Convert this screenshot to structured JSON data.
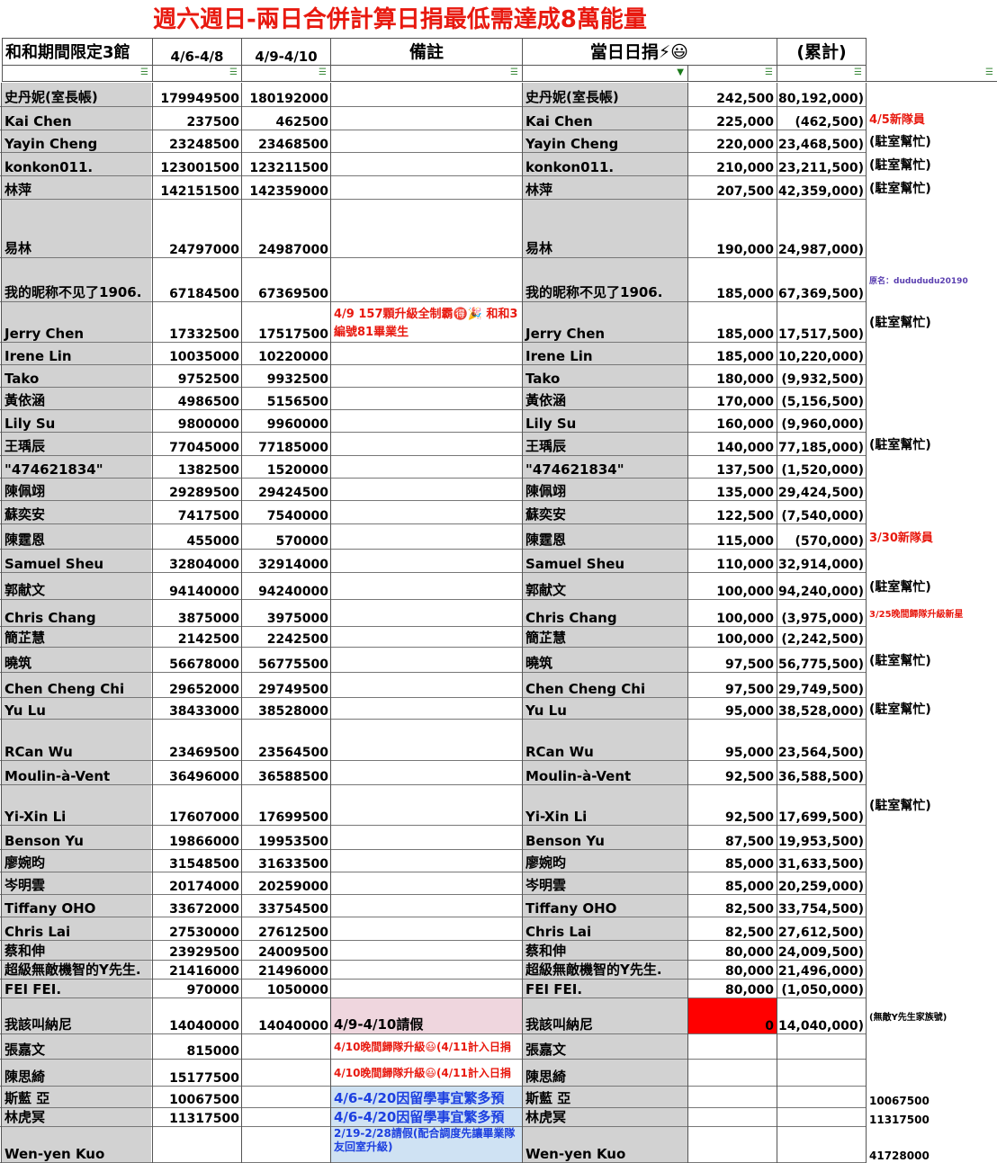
{
  "title": "週六週日-兩日合併計算日捐最低需達成8萬能量",
  "headers": {
    "col_a": "和和期間限定3館",
    "col_b": "4/6-4/8",
    "col_c": "4/9-4/10",
    "col_d": "備註",
    "col_e": "當日日捐⚡😃",
    "col_g": "(累計)"
  },
  "rows": [
    {
      "name": "史丹妮(室長帳)",
      "b": "179949500",
      "c": "180192000",
      "note": "",
      "name2": "史丹妮(室長帳)",
      "daily": "242,500",
      "cum": "(180,192,000)",
      "extra": ""
    },
    {
      "name": "Kai Chen",
      "b": "237500",
      "c": "462500",
      "note": "",
      "name2": "Kai Chen",
      "daily": "225,000",
      "cum": "(462,500)",
      "extra": "4/5新隊員"
    },
    {
      "name": "Yayin Cheng",
      "b": "23248500",
      "c": "23468500",
      "note": "",
      "name2": "Yayin Cheng",
      "daily": "220,000",
      "cum": "(23,468,500)",
      "extra": "(駐室幫忙)"
    },
    {
      "name": "konkon011.",
      "b": "123001500",
      "c": "123211500",
      "note": "",
      "name2": "konkon011.",
      "daily": "210,000",
      "cum": "(123,211,500)",
      "extra": "(駐室幫忙)"
    },
    {
      "name": "林萍",
      "b": "142151500",
      "c": "142359000",
      "note": "",
      "name2": "林萍",
      "daily": "207,500",
      "cum": "(142,359,000)",
      "extra": "(駐室幫忙)"
    },
    {
      "name": "易林",
      "b": "24797000",
      "c": "24987000",
      "note": "",
      "name2": "易林",
      "daily": "190,000",
      "cum": "(24,987,000)",
      "extra": ""
    },
    {
      "name": "我的昵称不见了1906.",
      "b": "67184500",
      "c": "67369500",
      "note": "",
      "name2": "我的昵称不见了1906.",
      "daily": "185,000",
      "cum": "(67,369,500)",
      "extra": "原名：dudududu20190"
    },
    {
      "name": "Jerry Chen",
      "b": "17332500",
      "c": "17517500",
      "note": "4/9 157顆升級全制霸🉐🎉 和和3編號81畢業生",
      "name2": "Jerry Chen",
      "daily": "185,000",
      "cum": "(17,517,500)",
      "extra": "(駐室幫忙)"
    },
    {
      "name": "Irene Lin",
      "b": "10035000",
      "c": "10220000",
      "note": "",
      "name2": "Irene Lin",
      "daily": "185,000",
      "cum": "(10,220,000)",
      "extra": ""
    },
    {
      "name": "Tako",
      "b": "9752500",
      "c": "9932500",
      "note": "",
      "name2": "Tako",
      "daily": "180,000",
      "cum": "(9,932,500)",
      "extra": ""
    },
    {
      "name": "黃依涵",
      "b": "4986500",
      "c": "5156500",
      "note": "",
      "name2": "黃依涵",
      "daily": "170,000",
      "cum": "(5,156,500)",
      "extra": ""
    },
    {
      "name": "Lily Su",
      "b": "9800000",
      "c": "9960000",
      "note": "",
      "name2": "Lily Su",
      "daily": "160,000",
      "cum": "(9,960,000)",
      "extra": ""
    },
    {
      "name": "王瑀辰",
      "b": "77045000",
      "c": "77185000",
      "note": "",
      "name2": "王瑀辰",
      "daily": "140,000",
      "cum": "(77,185,000)",
      "extra": "(駐室幫忙)"
    },
    {
      "name": "\"474621834\"",
      "b": "1382500",
      "c": "1520000",
      "note": "",
      "name2": "\"474621834\"",
      "daily": "137,500",
      "cum": "(1,520,000)",
      "extra": ""
    },
    {
      "name": "陳佩翊",
      "b": "29289500",
      "c": "29424500",
      "note": "",
      "name2": "陳佩翊",
      "daily": "135,000",
      "cum": "(29,424,500)",
      "extra": ""
    },
    {
      "name": "蘇奕安",
      "b": "7417500",
      "c": "7540000",
      "note": "",
      "name2": "蘇奕安",
      "daily": "122,500",
      "cum": "(7,540,000)",
      "extra": ""
    },
    {
      "name": "陳霆恩",
      "b": "455000",
      "c": "570000",
      "note": "",
      "name2": "陳霆恩",
      "daily": "115,000",
      "cum": "(570,000)",
      "extra": "3/30新隊員"
    },
    {
      "name": "Samuel Sheu",
      "b": "32804000",
      "c": "32914000",
      "note": "",
      "name2": "Samuel Sheu",
      "daily": "110,000",
      "cum": "(32,914,000)",
      "extra": ""
    },
    {
      "name": "郭献文",
      "b": "94140000",
      "c": "94240000",
      "note": "",
      "name2": "郭献文",
      "daily": "100,000",
      "cum": "(94,240,000)",
      "extra": "(駐室幫忙)"
    },
    {
      "name": "Chris Chang",
      "b": "3875000",
      "c": "3975000",
      "note": "",
      "name2": "Chris Chang",
      "daily": "100,000",
      "cum": "(3,975,000)",
      "extra": "3/25晚間歸隊升級新星"
    },
    {
      "name": "簡芷慧",
      "b": "2142500",
      "c": "2242500",
      "note": "",
      "name2": "簡芷慧",
      "daily": "100,000",
      "cum": "(2,242,500)",
      "extra": ""
    },
    {
      "name": "曉筑",
      "b": "56678000",
      "c": "56775500",
      "note": "",
      "name2": "曉筑",
      "daily": "97,500",
      "cum": "(56,775,500)",
      "extra": "(駐室幫忙)"
    },
    {
      "name": "Chen Cheng Chi",
      "b": "29652000",
      "c": "29749500",
      "note": "",
      "name2": "Chen Cheng Chi",
      "daily": "97,500",
      "cum": "(29,749,500)",
      "extra": ""
    },
    {
      "name": "Yu Lu",
      "b": "38433000",
      "c": "38528000",
      "note": "",
      "name2": "Yu Lu",
      "daily": "95,000",
      "cum": "(38,528,000)",
      "extra": "(駐室幫忙)"
    },
    {
      "name": "RCan Wu",
      "b": "23469500",
      "c": "23564500",
      "note": "",
      "name2": "RCan Wu",
      "daily": "95,000",
      "cum": "(23,564,500)",
      "extra": ""
    },
    {
      "name": "Moulin-à-Vent",
      "b": "36496000",
      "c": "36588500",
      "note": "",
      "name2": "Moulin-à-Vent",
      "daily": "92,500",
      "cum": "(36,588,500)",
      "extra": ""
    },
    {
      "name": "Yi-Xin Li",
      "b": "17607000",
      "c": "17699500",
      "note": "",
      "name2": "Yi-Xin Li",
      "daily": "92,500",
      "cum": "(17,699,500)",
      "extra": "(駐室幫忙)"
    },
    {
      "name": "Benson Yu",
      "b": "19866000",
      "c": "19953500",
      "note": "",
      "name2": "Benson Yu",
      "daily": "87,500",
      "cum": "(19,953,500)",
      "extra": ""
    },
    {
      "name": "廖婉昀",
      "b": "31548500",
      "c": "31633500",
      "note": "",
      "name2": "廖婉昀",
      "daily": "85,000",
      "cum": "(31,633,500)",
      "extra": ""
    },
    {
      "name": "岑明雲",
      "b": "20174000",
      "c": "20259000",
      "note": "",
      "name2": "岑明雲",
      "daily": "85,000",
      "cum": "(20,259,000)",
      "extra": ""
    },
    {
      "name": "Tiffany OHO",
      "b": "33672000",
      "c": "33754500",
      "note": "",
      "name2": "Tiffany OHO",
      "daily": "82,500",
      "cum": "(33,754,500)",
      "extra": ""
    },
    {
      "name": "Chris Lai",
      "b": "27530000",
      "c": "27612500",
      "note": "",
      "name2": "Chris Lai",
      "daily": "82,500",
      "cum": "(27,612,500)",
      "extra": ""
    },
    {
      "name": "蔡和伸",
      "b": "23929500",
      "c": "24009500",
      "note": "",
      "name2": "蔡和伸",
      "daily": "80,000",
      "cum": "(24,009,500)",
      "extra": ""
    },
    {
      "name": "超級無敵機智的Y先生.",
      "b": "21416000",
      "c": "21496000",
      "note": "",
      "name2": "超級無敵機智的Y先生.",
      "daily": "80,000",
      "cum": "(21,496,000)",
      "extra": ""
    },
    {
      "name": "FEI FEI.",
      "b": "970000",
      "c": "1050000",
      "note": "",
      "name2": "FEI FEI.",
      "daily": "80,000",
      "cum": "(1,050,000)",
      "extra": ""
    },
    {
      "name": "我該叫納尼",
      "b": "14040000",
      "c": "14040000",
      "note": "4/9-4/10請假",
      "name2": "我該叫納尼",
      "daily": "0",
      "cum": "(14,040,000)",
      "extra": "(無敵Y先生家族號)"
    },
    {
      "name": "張嘉文",
      "b": "815000",
      "c": "",
      "note": "4/10晚間歸隊升級😃(4/11計入日捐",
      "name2": "張嘉文",
      "daily": "",
      "cum": "",
      "extra": ""
    },
    {
      "name": "陳思綺",
      "b": "15177500",
      "c": "",
      "note": "4/10晚間歸隊升級😃(4/11計入日捐",
      "name2": "陳思綺",
      "daily": "",
      "cum": "",
      "extra": ""
    },
    {
      "name": "斯藍 亞",
      "b": "10067500",
      "c": "",
      "note": "4/6-4/20因留學事宜繁多預",
      "name2": "斯藍 亞",
      "daily": "",
      "cum": "",
      "extra": "10067500"
    },
    {
      "name": "林虎冥",
      "b": "11317500",
      "c": "",
      "note": "4/6-4/20因留學事宜繁多預",
      "name2": "林虎冥",
      "daily": "",
      "cum": "",
      "extra": "11317500"
    },
    {
      "name": "Wen-yen Kuo",
      "b": "",
      "c": "",
      "note": "2/19-2/28請假(配合調度先讓畢業隊友回室升級)",
      "name2": "Wen-yen Kuo",
      "daily": "",
      "cum": "",
      "extra": "41728000"
    }
  ],
  "colors": {
    "title": "#e8190f",
    "name_bg": "#d2d2d2",
    "pink": "#efd6de",
    "blue": "#cfe2f3",
    "blue_text": "#1c3fe0",
    "red_fill": "#ff0000"
  }
}
